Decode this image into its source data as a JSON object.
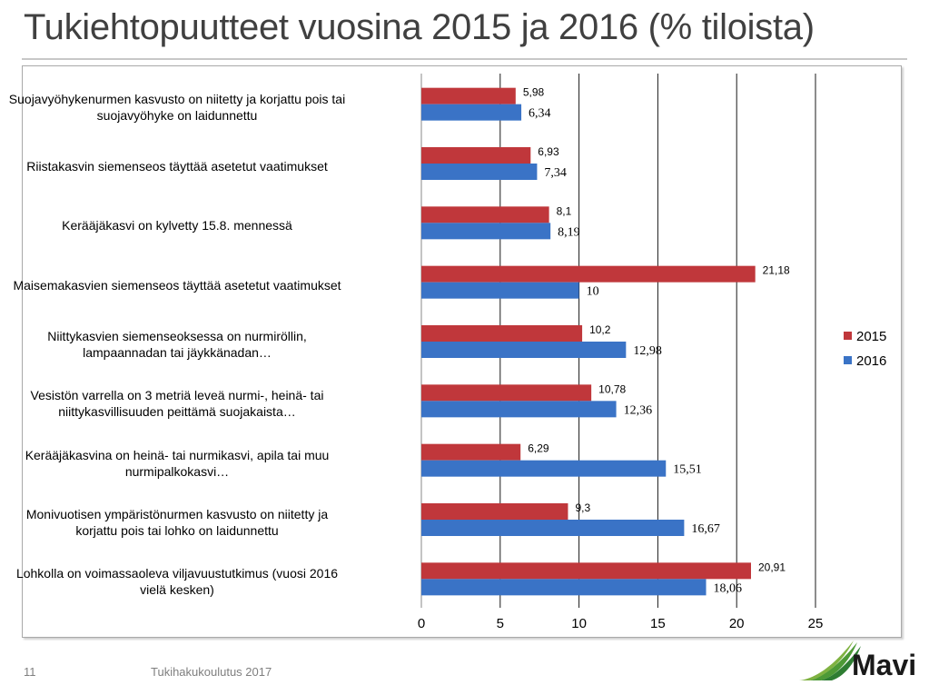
{
  "slide": {
    "title": "Tukiehtopuutteet vuosina 2015 ja 2016 (% tiloista)",
    "page_number": "11",
    "footer": "Tukihakukoulutus 2017",
    "logo_text": "Mavi"
  },
  "colors": {
    "series_2015": "#c0373b",
    "series_2016": "#3a73c6",
    "gridline": "#1a1a1a"
  },
  "chart_data": {
    "type": "bar",
    "orientation": "horizontal",
    "categories": [
      [
        "Suojavyöhykenurmen kasvusto on niitetty ja korjattu pois tai",
        "suojavyöhyke on laidunnettu"
      ],
      [
        "Riistakasvin siemenseos täyttää asetetut vaatimukset"
      ],
      [
        "Kerääjäkasvi on kylvetty 15.8. mennessä"
      ],
      [
        "Maisemakasvien  siemenseos täyttää asetetut vaatimukset"
      ],
      [
        "Niittykasvien siemenseoksessa on nurmiröllin,",
        "lampaannadan  tai jäykkänadan…"
      ],
      [
        "Vesistön varrella on 3 metriä leveä nurmi-, heinä- tai",
        "niittykasvillisuuden peittämä suojakaista…"
      ],
      [
        "Kerääjäkasvina on heinä- tai nurmikasvi,  apila tai muu",
        "nurmipalkokasvi…"
      ],
      [
        "Monivuotisen ympäristönurmen kasvusto on niitetty ja",
        "korjattu pois tai lohko on laidunnettu"
      ],
      [
        "Lohkolla on voimassaoleva viljavuustutkimus (vuosi 2016",
        "vielä kesken)"
      ]
    ],
    "series": [
      {
        "name": "2015",
        "values": [
          5.98,
          6.93,
          8.1,
          21.18,
          10.2,
          10.78,
          6.29,
          9.3,
          20.91
        ],
        "labels": [
          "5,98",
          "6,93",
          "8,1",
          "21,18",
          "10,2",
          "10,78",
          "6,29",
          "9,3",
          "20,91"
        ]
      },
      {
        "name": "2016",
        "values": [
          6.34,
          7.34,
          8.19,
          10,
          12.98,
          12.36,
          15.51,
          16.67,
          18.06
        ],
        "labels": [
          "6,34",
          "7,34",
          "8,19",
          "10",
          "12,98",
          "12,36",
          "15,51",
          "16,67",
          "18,06"
        ]
      }
    ],
    "x_ticks": [
      "0",
      "5",
      "10",
      "15",
      "20",
      "25"
    ],
    "xlim": [
      0,
      25
    ],
    "grid": true,
    "legend_position": "right"
  }
}
